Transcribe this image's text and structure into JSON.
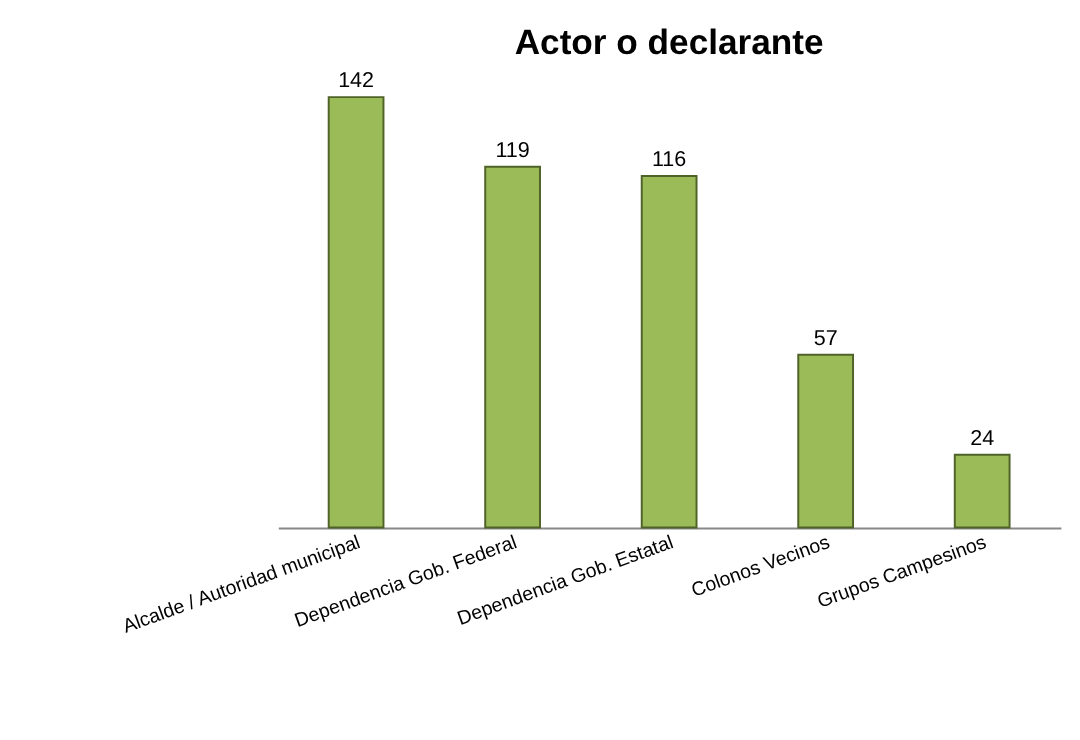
{
  "chart_data": {
    "type": "bar",
    "title": "Actor o declarante",
    "categories": [
      "Alcalde / Autoridad municipal",
      "Dependencia Gob. Federal",
      "Dependencia Gob. Estatal",
      "Colonos Vecinos",
      "Grupos Campesinos"
    ],
    "values": [
      142,
      119,
      116,
      57,
      24
    ],
    "color": "#9bbb59",
    "data_labels": true
  }
}
